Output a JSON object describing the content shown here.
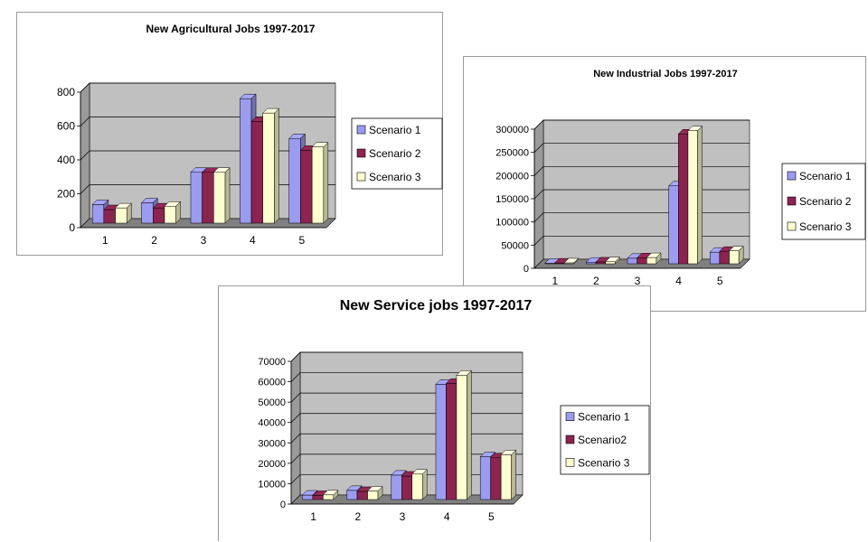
{
  "colors": {
    "scenario_1": "#9b9bf0",
    "scenario_2": "#8c2450",
    "scenario_3": "#ffffd0",
    "plot_wall": "#c0c0c0",
    "plot_floor": "#808080",
    "gridline": "#000000"
  },
  "chart_data": [
    {
      "type": "bar",
      "title": "New Agricultural Jobs 1997-2017",
      "categories": [
        "1",
        "2",
        "3",
        "4",
        "5"
      ],
      "series": [
        {
          "name": "Scenario 1",
          "values": [
            110,
            120,
            300,
            735,
            500
          ]
        },
        {
          "name": "Scenario 2",
          "values": [
            80,
            90,
            300,
            600,
            430
          ]
        },
        {
          "name": "Scenario 3",
          "values": [
            90,
            100,
            300,
            650,
            450
          ]
        }
      ],
      "ylim": [
        0,
        800
      ],
      "yticks": [
        "0",
        "200",
        "400",
        "600",
        "800"
      ],
      "grid": true,
      "legend": "right"
    },
    {
      "type": "bar",
      "title": "New Industrial Jobs 1997-2017",
      "categories": [
        "1",
        "2",
        "3",
        "4",
        "5"
      ],
      "series": [
        {
          "name": "Scenario 1",
          "values": [
            1500,
            3500,
            12000,
            168000,
            25000
          ]
        },
        {
          "name": "Scenario 2",
          "values": [
            1800,
            4000,
            13000,
            280000,
            27000
          ]
        },
        {
          "name": "Scenario 3",
          "values": [
            2000,
            4500,
            13500,
            287000,
            28000
          ]
        }
      ],
      "ylim": [
        0,
        300000
      ],
      "yticks": [
        "0",
        "50000",
        "100000",
        "150000",
        "200000",
        "250000",
        "300000"
      ],
      "grid": true,
      "legend": "right"
    },
    {
      "type": "bar",
      "title": "New Service jobs 1997-2017",
      "categories": [
        "1",
        "2",
        "3",
        "4",
        "5"
      ],
      "series": [
        {
          "name": "Scenario 1",
          "values": [
            2200,
            4500,
            12000,
            56500,
            21000
          ]
        },
        {
          "name": "Scenario2",
          "values": [
            2000,
            4000,
            11500,
            57000,
            20500
          ]
        },
        {
          "name": "Scenario 3",
          "values": [
            2300,
            4200,
            12500,
            61000,
            22000
          ]
        }
      ],
      "ylim": [
        0,
        70000
      ],
      "yticks": [
        "0",
        "10000",
        "20000",
        "30000",
        "40000",
        "50000",
        "60000",
        "70000"
      ],
      "grid": true,
      "legend": "right"
    }
  ]
}
